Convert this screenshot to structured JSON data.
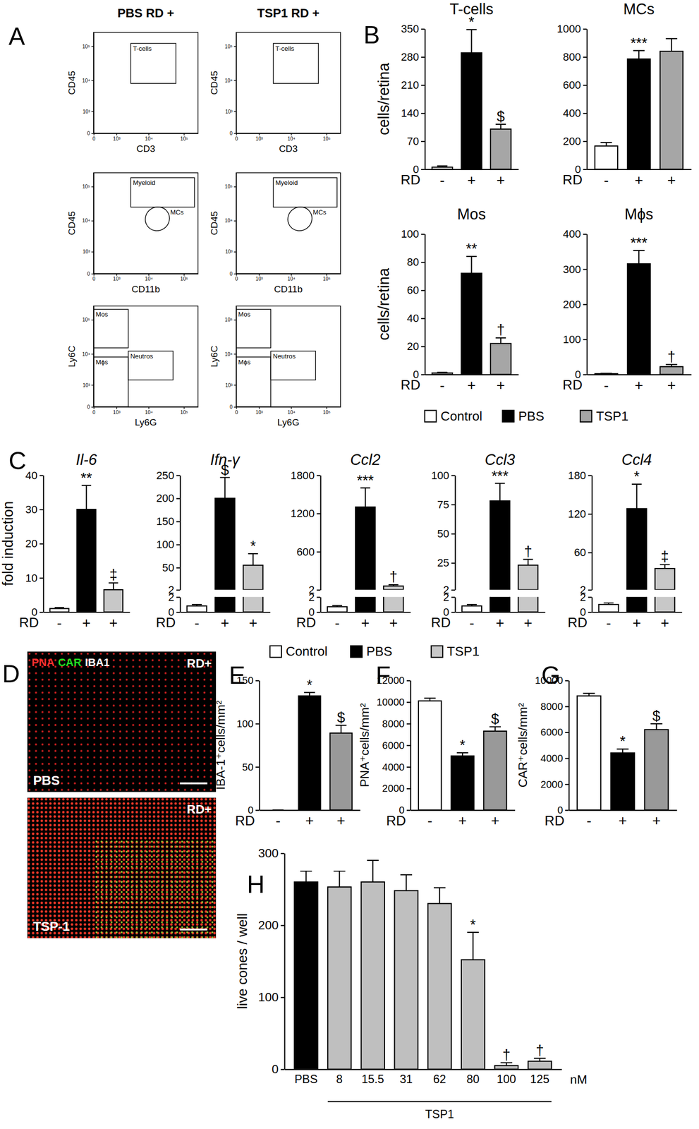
{
  "chart_data": [
    {
      "type": "bar",
      "title": "T-cells",
      "ylabel": "cells/retina",
      "xlabel": "RD",
      "categories": [
        "-",
        "+",
        "+"
      ],
      "values": [
        5,
        290,
        100
      ],
      "errors": [
        3,
        58,
        12
      ],
      "annotations": [
        null,
        "*",
        "$"
      ],
      "colors": [
        "#ffffff",
        "#000000",
        "#a6a6a6"
      ],
      "ylim": [
        0,
        350
      ],
      "yticks": [
        0,
        70,
        140,
        210,
        280,
        350
      ]
    },
    {
      "type": "bar",
      "title": "MCs",
      "xlabel": "RD",
      "categories": [
        "-",
        "+",
        "+"
      ],
      "values": [
        165,
        785,
        840
      ],
      "errors": [
        25,
        60,
        90
      ],
      "annotations": [
        null,
        "***",
        null
      ],
      "colors": [
        "#ffffff",
        "#000000",
        "#a6a6a6"
      ],
      "ylim": [
        0,
        1000
      ],
      "yticks": [
        0,
        200,
        400,
        600,
        800,
        1000
      ]
    },
    {
      "type": "bar",
      "title": "Mos",
      "ylabel": "cells/retina",
      "xlabel": "RD",
      "categories": [
        "-",
        "+",
        "+"
      ],
      "values": [
        1,
        72,
        22
      ],
      "errors": [
        0.5,
        12,
        4
      ],
      "annotations": [
        null,
        "**",
        "†"
      ],
      "colors": [
        "#ffffff",
        "#000000",
        "#a6a6a6"
      ],
      "ylim": [
        0,
        100
      ],
      "yticks": [
        0,
        20,
        40,
        60,
        80,
        100
      ]
    },
    {
      "type": "bar",
      "title": "Mϕs",
      "xlabel": "RD",
      "categories": [
        "-",
        "+",
        "+"
      ],
      "values": [
        2,
        315,
        22
      ],
      "errors": [
        1,
        38,
        6
      ],
      "annotations": [
        null,
        "***",
        "†"
      ],
      "colors": [
        "#ffffff",
        "#000000",
        "#a6a6a6"
      ],
      "ylim": [
        0,
        400
      ],
      "yticks": [
        0,
        100,
        200,
        300,
        400
      ]
    },
    {
      "type": "bar",
      "title": "Il-6",
      "ylabel": "fold induction",
      "xlabel": "RD",
      "categories": [
        "-",
        "+",
        "+"
      ],
      "values": [
        1,
        30,
        6.5
      ],
      "errors": [
        0.3,
        7,
        2
      ],
      "annotations": [
        null,
        "**",
        "‡"
      ],
      "colors": [
        "#ffffff",
        "#000000",
        "#c8c8c8"
      ],
      "ylim": [
        0,
        40
      ],
      "yticks": [
        0,
        10,
        20,
        30,
        40
      ]
    },
    {
      "type": "bar",
      "title": "Ifn-γ",
      "xlabel": "RD",
      "categories": [
        "-",
        "+",
        "+"
      ],
      "values": [
        0.8,
        200,
        55
      ],
      "errors": [
        0.2,
        45,
        25
      ],
      "annotations": [
        null,
        "$",
        "*"
      ],
      "colors": [
        "#ffffff",
        "#000000",
        "#c8c8c8"
      ],
      "segments": [
        {
          "ylim": [
            0,
            2
          ],
          "yticks": [
            0,
            2
          ]
        },
        {
          "ylim": [
            2,
            250
          ],
          "yticks": [
            2,
            50,
            100,
            150,
            200,
            250
          ]
        }
      ]
    },
    {
      "type": "bar",
      "title": "Ccl2",
      "xlabel": "RD",
      "categories": [
        "-",
        "+",
        "+"
      ],
      "values": [
        0.7,
        1300,
        60
      ],
      "errors": [
        0.15,
        300,
        20
      ],
      "annotations": [
        null,
        "***",
        "†"
      ],
      "colors": [
        "#ffffff",
        "#000000",
        "#c8c8c8"
      ],
      "segments": [
        {
          "ylim": [
            0,
            2
          ],
          "yticks": [
            0,
            2
          ]
        },
        {
          "ylim": [
            2,
            1800
          ],
          "yticks": [
            2,
            600,
            1200,
            1800
          ]
        }
      ]
    },
    {
      "type": "bar",
      "title": "Ccl3",
      "xlabel": "RD",
      "categories": [
        "-",
        "+",
        "+"
      ],
      "values": [
        0.8,
        78,
        23
      ],
      "errors": [
        0.2,
        15,
        5
      ],
      "annotations": [
        null,
        "***",
        "†"
      ],
      "colors": [
        "#ffffff",
        "#000000",
        "#c8c8c8"
      ],
      "segments": [
        {
          "ylim": [
            0,
            2
          ],
          "yticks": [
            0,
            2
          ]
        },
        {
          "ylim": [
            2,
            100
          ],
          "yticks": [
            2,
            25,
            50,
            75,
            100
          ]
        }
      ]
    },
    {
      "type": "bar",
      "title": "Ccl4",
      "xlabel": "RD",
      "categories": [
        "-",
        "+",
        "+"
      ],
      "values": [
        1,
        128,
        35
      ],
      "errors": [
        0.2,
        38,
        6
      ],
      "annotations": [
        null,
        "*",
        "‡"
      ],
      "colors": [
        "#ffffff",
        "#000000",
        "#c8c8c8"
      ],
      "segments": [
        {
          "ylim": [
            0,
            2
          ],
          "yticks": [
            0,
            2
          ]
        },
        {
          "ylim": [
            2,
            180
          ],
          "yticks": [
            2,
            60,
            120,
            180
          ]
        }
      ]
    },
    {
      "type": "bar",
      "ylabel": "IBA-1⁺cells/mm²",
      "xlabel": "RD",
      "categories": [
        "-",
        "+",
        "+"
      ],
      "values": [
        0,
        132,
        89
      ],
      "errors": [
        0,
        4,
        9
      ],
      "annotations": [
        null,
        "*",
        "$"
      ],
      "colors": [
        "#ffffff",
        "#000000",
        "#999999"
      ],
      "ylim": [
        0,
        150
      ],
      "yticks": [
        0,
        50,
        100,
        150
      ]
    },
    {
      "type": "bar",
      "ylabel": "PNA⁺cells/mm²",
      "xlabel": "RD",
      "categories": [
        "-",
        "+",
        "+"
      ],
      "values": [
        10100,
        5000,
        7300
      ],
      "errors": [
        250,
        300,
        400
      ],
      "annotations": [
        null,
        "*",
        "$"
      ],
      "colors": [
        "#ffffff",
        "#000000",
        "#999999"
      ],
      "ylim": [
        0,
        12000
      ],
      "yticks": [
        0,
        2000,
        4000,
        6000,
        8000,
        10000,
        12000
      ]
    },
    {
      "type": "bar",
      "ylabel": "CAR⁺cells/mm²",
      "xlabel": "RD",
      "categories": [
        "-",
        "+",
        "+"
      ],
      "values": [
        8800,
        4400,
        6200
      ],
      "errors": [
        200,
        300,
        450
      ],
      "annotations": [
        null,
        "*",
        "$"
      ],
      "colors": [
        "#ffffff",
        "#000000",
        "#999999"
      ],
      "ylim": [
        0,
        10000
      ],
      "yticks": [
        0,
        2000,
        4000,
        6000,
        8000,
        10000
      ]
    },
    {
      "type": "bar",
      "ylabel": "live cones / well",
      "xlabel": "nM",
      "group_label": "TSP1",
      "categories": [
        "PBS",
        "8",
        "15.5",
        "31",
        "62",
        "80",
        "100",
        "125"
      ],
      "values": [
        260,
        253,
        260,
        248,
        230,
        152,
        5,
        11
      ],
      "errors": [
        15,
        22,
        30,
        22,
        22,
        38,
        4,
        4
      ],
      "annotations": [
        null,
        null,
        null,
        null,
        null,
        "*",
        "†",
        "†"
      ],
      "colors": [
        "#000000",
        "#bfbfbf",
        "#bfbfbf",
        "#bfbfbf",
        "#bfbfbf",
        "#bfbfbf",
        "#bfbfbf",
        "#bfbfbf"
      ],
      "ylim": [
        0,
        300
      ],
      "yticks": [
        0,
        100,
        200,
        300
      ]
    }
  ],
  "figure": {
    "panel_labels": [
      "A",
      "B",
      "C",
      "D",
      "E",
      "F",
      "G",
      "H"
    ],
    "legends": [
      {
        "entries": [
          {
            "name": "Control",
            "color": "#ffffff"
          },
          {
            "name": "PBS",
            "color": "#000000"
          },
          {
            "name": "TSP1",
            "color": "#a6a6a6"
          }
        ]
      },
      {
        "entries": [
          {
            "name": "Control",
            "color": "#ffffff"
          },
          {
            "name": "PBS",
            "color": "#000000"
          },
          {
            "name": "TSP1",
            "color": "#c8c8c8"
          }
        ]
      }
    ],
    "flow": {
      "columns": [
        "PBS RD +",
        "TSP1 RD +"
      ],
      "log": true,
      "xlim": [
        0,
        250000
      ],
      "ylim": [
        0,
        250000
      ],
      "xticks": [
        0,
        {
          "value": 1000,
          "label": "10³"
        },
        {
          "value": 10000,
          "label": "10⁴"
        },
        {
          "value": 100000,
          "label": "10⁵"
        }
      ],
      "yticks": [
        0,
        {
          "value": 1000,
          "label": "10³"
        },
        {
          "value": 10000,
          "label": "10⁴"
        },
        {
          "value": 100000,
          "label": "10⁵"
        }
      ],
      "rows": [
        {
          "xlabel": "CD3",
          "ylabel": "CD45",
          "gates": [
            {
              "label": "T-cells",
              "shape": "rect",
              "x": [
                3000,
                60000
              ],
              "y": [
                8000,
                120000
              ]
            }
          ]
        },
        {
          "xlabel": "CD11b",
          "ylabel": "CD45",
          "gates": [
            {
              "label": "Myeloid",
              "shape": "rect",
              "x": [
                3000,
                200000
              ],
              "y": [
                25000,
                180000
              ]
            },
            {
              "label": "MCs",
              "shape": "ellipse",
              "x": [
                8000,
                40000
              ],
              "y": [
                5000,
                25000
              ]
            }
          ]
        },
        {
          "xlabel": "Ly6G",
          "ylabel": "Ly6C",
          "gates": [
            {
              "label": "Mos",
              "shape": "rect",
              "x": [
                0,
                2500
              ],
              "y": [
                15000,
                200000
              ]
            },
            {
              "label": "Neutros",
              "shape": "rect",
              "x": [
                2500,
                50000
              ],
              "y": [
                1500,
                12000
              ]
            },
            {
              "label": "Mϕs",
              "shape": "rect",
              "x": [
                0,
                2500
              ],
              "y": [
                0,
                8000
              ]
            }
          ]
        }
      ]
    },
    "images": [
      {
        "label": "PBS",
        "corner": "RD+",
        "channels": [
          {
            "name": "PNA",
            "color": "#ff3030"
          },
          {
            "name": "CAR",
            "color": "#22dd22"
          },
          {
            "name": "IBA1",
            "color": "#ffffff"
          }
        ]
      },
      {
        "label": "TSP-1",
        "corner": "RD+"
      }
    ]
  }
}
